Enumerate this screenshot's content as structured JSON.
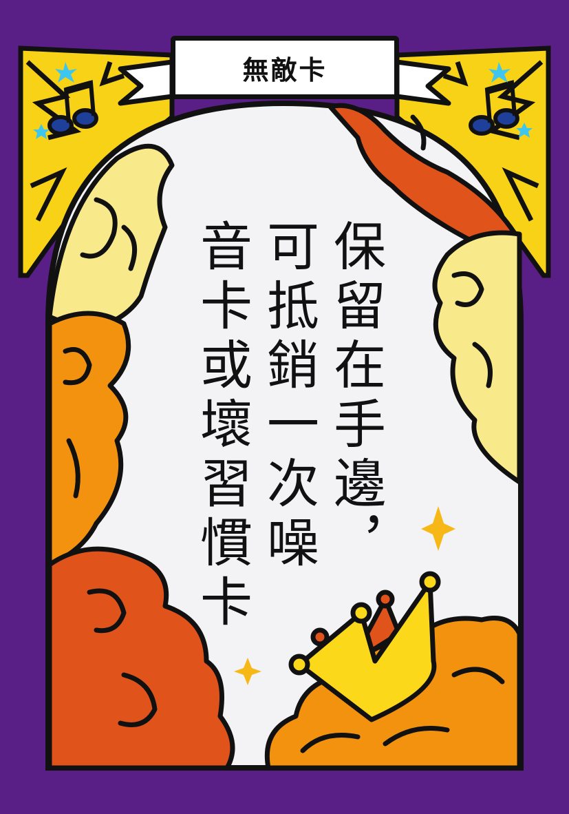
{
  "card": {
    "title": "無敵卡",
    "body_columns": [
      "保留在手邊，",
      "可抵銷一次噪",
      "音卡或壞習慣卡"
    ]
  },
  "icons": [
    "music-note-icon",
    "music-note-icon",
    "crown-icon",
    "sparkle-icon",
    "sparkle-icon"
  ],
  "colors": {
    "background": "#5a1f86",
    "panel": "#f3f3f6",
    "cloud_yellow": "#f8ea8a",
    "cloud_orange": "#f2920f",
    "cloud_red": "#e0541c",
    "lightning": "#f7d216",
    "crown": "#fcd81a",
    "note_blue": "#1e3f9a",
    "star_cyan": "#3fc6ee",
    "outline": "#111111"
  }
}
